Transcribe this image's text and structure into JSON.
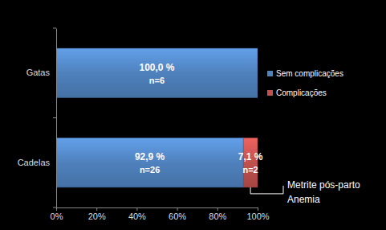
{
  "chart_data": {
    "type": "bar",
    "orientation": "horizontal",
    "stacked": true,
    "data_labels": true,
    "legend": "right",
    "grid": false,
    "categories": [
      "Gatas",
      "Cadelas"
    ],
    "series": [
      {
        "name": "Sem complicações",
        "color": "#4f81bd",
        "values": [
          100.0,
          92.9
        ],
        "value_labels": [
          "100,0 %",
          "92,9 %"
        ],
        "n_labels": [
          "n=6",
          "n=26"
        ]
      },
      {
        "name": "Complicações",
        "color": "#c0504d",
        "values": [
          0,
          7.1
        ],
        "value_labels": [
          null,
          "7,1 %"
        ],
        "n_labels": [
          null,
          "n=2"
        ]
      }
    ],
    "xlim": [
      0,
      100
    ],
    "xticks": [
      {
        "value": 0,
        "label": "0%"
      },
      {
        "value": 20,
        "label": "20%"
      },
      {
        "value": 40,
        "label": "40%"
      },
      {
        "value": 60,
        "label": "60%"
      },
      {
        "value": 80,
        "label": "80%"
      },
      {
        "value": 100,
        "label": "100%"
      }
    ],
    "annotations": [
      "Metrite pós-parto",
      "Anemia"
    ]
  }
}
